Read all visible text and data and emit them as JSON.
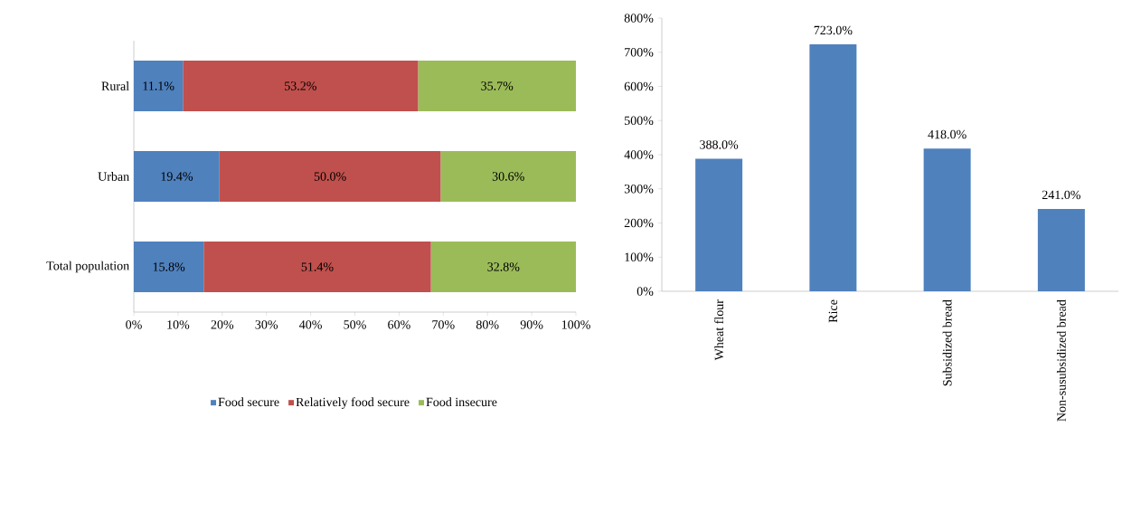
{
  "chart_data": [
    {
      "type": "bar",
      "orientation": "horizontal",
      "stacked": true,
      "categories": [
        "Rural",
        "Urban",
        "Total population"
      ],
      "series": [
        {
          "name": "Food secure",
          "color": "#4f81bd",
          "values": [
            11.1,
            19.4,
            15.8
          ],
          "value_labels": [
            "11.1%",
            "19.4%",
            "15.8%"
          ]
        },
        {
          "name": "Relatively food secure",
          "color": "#c0504d",
          "values": [
            53.2,
            50.0,
            51.4
          ],
          "value_labels": [
            "53.2%",
            "50.0%",
            "51.4%"
          ]
        },
        {
          "name": "Food insecure",
          "color": "#9bbb59",
          "values": [
            35.7,
            30.6,
            32.8
          ],
          "value_labels": [
            "35.7%",
            "30.6%",
            "32.8%"
          ]
        }
      ],
      "xlim": [
        0,
        100
      ],
      "xticks": [
        {
          "value": 0,
          "label": "0%"
        },
        {
          "value": 10,
          "label": "10%"
        },
        {
          "value": 20,
          "label": "20%"
        },
        {
          "value": 30,
          "label": "30%"
        },
        {
          "value": 40,
          "label": "40%"
        },
        {
          "value": 50,
          "label": "50%"
        },
        {
          "value": 60,
          "label": "60%"
        },
        {
          "value": 70,
          "label": "70%"
        },
        {
          "value": 80,
          "label": "80%"
        },
        {
          "value": 90,
          "label": "90%"
        },
        {
          "value": 100,
          "label": "100%"
        }
      ],
      "legend": "bottom"
    },
    {
      "type": "bar",
      "categories": [
        "Wheat flour",
        "Rice",
        "Subsidized bread",
        "Non-susubsidized bread"
      ],
      "values": [
        388,
        723,
        418,
        241
      ],
      "value_labels": [
        "388.0%",
        "723.0%",
        "418.0%",
        "241.0%"
      ],
      "color": "#4f81bd",
      "ylim": [
        0,
        800
      ],
      "yticks": [
        {
          "value": 0,
          "label": "0%"
        },
        {
          "value": 100,
          "label": "100%"
        },
        {
          "value": 200,
          "label": "200%"
        },
        {
          "value": 300,
          "label": "300%"
        },
        {
          "value": 400,
          "label": "400%"
        },
        {
          "value": 500,
          "label": "500%"
        },
        {
          "value": 600,
          "label": "600%"
        },
        {
          "value": 700,
          "label": "700%"
        },
        {
          "value": 800,
          "label": "800%"
        }
      ]
    }
  ]
}
